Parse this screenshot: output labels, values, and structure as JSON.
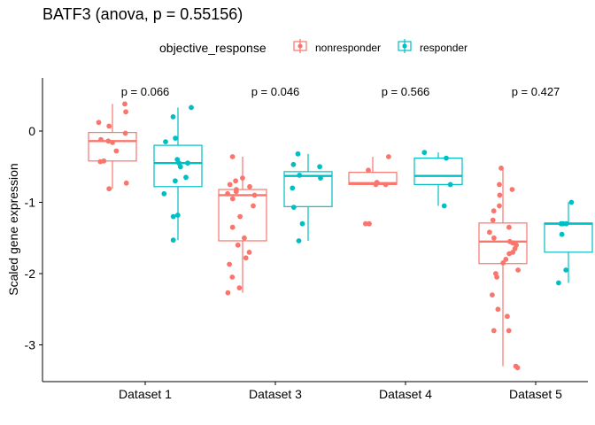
{
  "chart_data": {
    "type": "boxplot",
    "title": "BATF3 (anova, p = 0.55156)",
    "ylabel": "Scaled gene expression",
    "xlabel": "",
    "ylim": [
      -3.5,
      0.75
    ],
    "yticks": [
      0,
      -1,
      -2,
      -3
    ],
    "grid": false,
    "legend": {
      "position": "top",
      "title": "objective_response",
      "entries": [
        "nonresponder",
        "responder"
      ]
    },
    "colors": {
      "nonresponder": "#F8766D",
      "responder": "#00BFC4"
    },
    "categories": [
      "Dataset 1",
      "Dataset 3",
      "Dataset 4",
      "Dataset 5"
    ],
    "p_values": [
      "p = 0.066",
      "p = 0.046",
      "p = 0.566",
      "p = 0.427"
    ],
    "series": [
      {
        "name": "nonresponder",
        "boxes": [
          {
            "lower_whisker": -0.81,
            "q1": -0.42,
            "median": -0.14,
            "q3": -0.02,
            "upper_whisker": 0.38
          },
          {
            "lower_whisker": -2.27,
            "q1": -1.54,
            "median": -0.9,
            "q3": -0.82,
            "upper_whisker": -0.36
          },
          {
            "lower_whisker": -0.75,
            "q1": -0.75,
            "median": -0.73,
            "q3": -0.58,
            "upper_whisker": -0.36
          },
          {
            "lower_whisker": -3.3,
            "q1": -1.86,
            "median": -1.55,
            "q3": -1.29,
            "upper_whisker": -0.52
          }
        ],
        "points": [
          [
            0.38,
            0.27,
            0.12,
            0.07,
            -0.03,
            -0.12,
            -0.14,
            -0.16,
            -0.28,
            -0.42,
            -0.43,
            -0.73,
            -0.81
          ],
          [
            -0.36,
            -0.66,
            -0.7,
            -0.75,
            -0.78,
            -0.82,
            -0.85,
            -0.88,
            -0.9,
            -0.95,
            -1.05,
            -1.2,
            -1.35,
            -1.5,
            -1.6,
            -1.7,
            -1.78,
            -1.87,
            -2.05,
            -2.2,
            -2.27
          ],
          [
            -0.36,
            -0.55,
            -0.72,
            -0.75,
            -0.75,
            -1.3,
            -1.3
          ],
          [
            -0.52,
            -0.75,
            -0.82,
            -0.9,
            -1.05,
            -1.12,
            -1.25,
            -1.35,
            -1.42,
            -1.5,
            -1.55,
            -1.57,
            -1.6,
            -1.65,
            -1.7,
            -1.72,
            -1.8,
            -1.85,
            -1.95,
            -2.0,
            -2.05,
            -2.3,
            -2.5,
            -2.6,
            -2.8,
            -2.8,
            -3.3,
            -3.32
          ]
        ]
      },
      {
        "name": "responder",
        "boxes": [
          {
            "lower_whisker": -1.53,
            "q1": -0.78,
            "median": -0.45,
            "q3": -0.2,
            "upper_whisker": 0.33
          },
          {
            "lower_whisker": -1.54,
            "q1": -1.06,
            "median": -0.63,
            "q3": -0.57,
            "upper_whisker": -0.32
          },
          {
            "lower_whisker": -1.05,
            "q1": -0.75,
            "median": -0.63,
            "q3": -0.38,
            "upper_whisker": -0.3
          },
          {
            "lower_whisker": -2.13,
            "q1": -1.7,
            "median": -1.3,
            "q3": -1.29,
            "upper_whisker": -1.0
          }
        ],
        "points": [
          [
            0.33,
            0.2,
            -0.1,
            -0.15,
            -0.4,
            -0.45,
            -0.45,
            -0.5,
            -0.65,
            -0.7,
            -0.88,
            -1.18,
            -1.2,
            -1.53
          ],
          [
            -0.32,
            -0.47,
            -0.5,
            -0.62,
            -0.66,
            -0.8,
            -1.07,
            -1.3,
            -1.54
          ],
          [
            -0.3,
            -0.38,
            -0.75,
            -1.05
          ],
          [
            -1.0,
            -1.3,
            -1.3,
            -1.3,
            -1.45,
            -1.95,
            -2.13
          ]
        ]
      }
    ]
  }
}
